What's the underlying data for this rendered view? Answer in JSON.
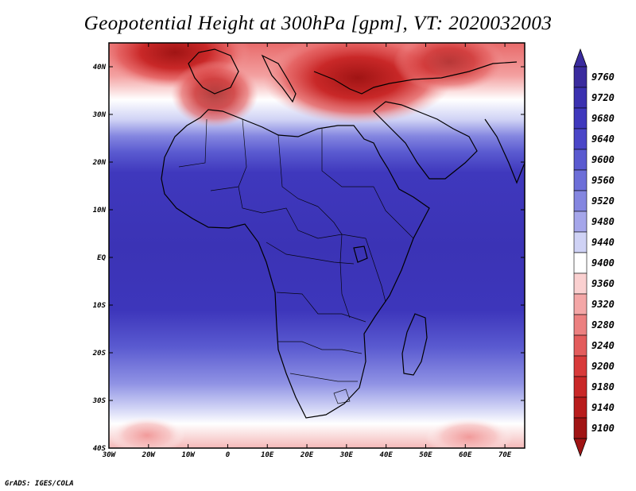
{
  "title": "Geopotential Height at 300hPa [gpm], VT: 2020032003",
  "credit": "GrADS: IGES/COLA",
  "map": {
    "lat_labels": [
      "40N",
      "30N",
      "20N",
      "10N",
      "EQ",
      "10S",
      "20S",
      "30S",
      "40S"
    ],
    "lon_labels": [
      "30W",
      "20W",
      "10W",
      "0",
      "10E",
      "20E",
      "30E",
      "40E",
      "50E",
      "60E",
      "70E"
    ],
    "lon_range": [
      -30,
      75
    ],
    "lat_range": [
      -40,
      45
    ],
    "lat_ticks": [
      40,
      30,
      20,
      10,
      0,
      -10,
      -20,
      -30,
      -40
    ],
    "lon_ticks": [
      -30,
      -20,
      -10,
      0,
      10,
      20,
      30,
      40,
      50,
      60,
      70
    ]
  },
  "colorbar": {
    "unit": "gpm",
    "levels": [
      9760,
      9720,
      9680,
      9640,
      9600,
      9560,
      9520,
      9480,
      9440,
      9400,
      9360,
      9320,
      9280,
      9240,
      9200,
      9180,
      9140,
      9100
    ],
    "colors": [
      "#3a2b9e",
      "#3b31b0",
      "#3f38bd",
      "#4a46c8",
      "#5a5ad0",
      "#6c6ed8",
      "#8486e0",
      "#a5a6ea",
      "#cfd2f5",
      "#ffffff",
      "#fad0d0",
      "#f4a7a7",
      "#ec8080",
      "#e35c5c",
      "#d83a3a",
      "#c92828",
      "#b81c1c",
      "#a01414"
    ]
  },
  "colors": {
    "high": "#3b33b5",
    "low": "#b51a1a",
    "neutral": "#ffffff",
    "coast": "#000000"
  }
}
